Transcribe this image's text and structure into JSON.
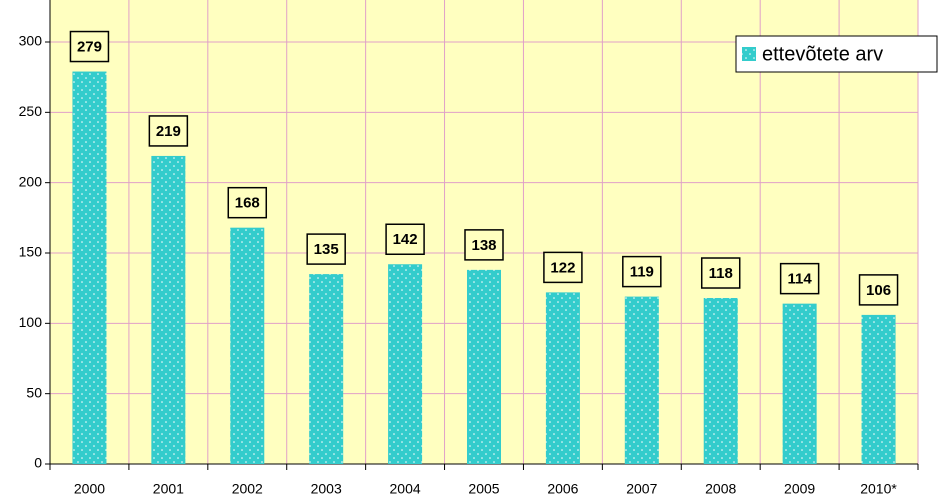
{
  "chart_data": {
    "type": "bar",
    "categories": [
      "2000",
      "2001",
      "2002",
      "2003",
      "2004",
      "2005",
      "2006",
      "2007",
      "2008",
      "2009",
      "2010*"
    ],
    "series": [
      {
        "name": "ettevõtete arv",
        "color": "#33cccc",
        "values": [
          279,
          219,
          168,
          135,
          142,
          138,
          122,
          119,
          118,
          114,
          106
        ]
      }
    ],
    "ylim": [
      0,
      300
    ],
    "yticks": [
      0,
      50,
      100,
      150,
      200,
      250,
      300
    ],
    "grid": true,
    "legend": "top-right",
    "data_labels": true
  }
}
